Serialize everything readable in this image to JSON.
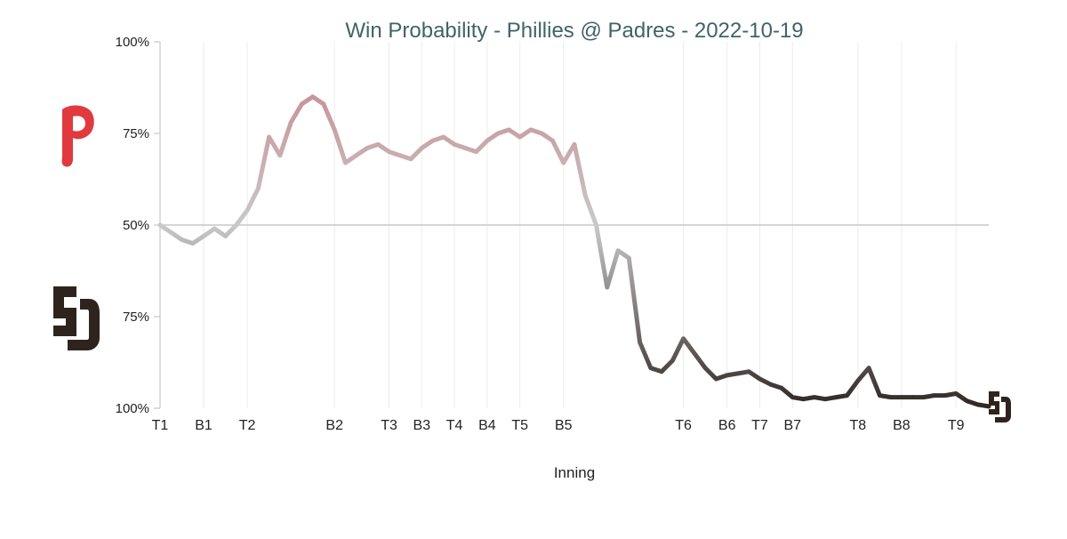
{
  "chart_data": {
    "type": "line",
    "title": "Win Probability - Phillies @ Padres - 2022-10-19",
    "xlabel": "Inning",
    "ylabel": "",
    "y_ticks": [
      "100%",
      "75%",
      "50%",
      "75%",
      "100%"
    ],
    "x_tick_labels": [
      {
        "label": "T1",
        "index": 0
      },
      {
        "label": "B1",
        "index": 4
      },
      {
        "label": "T2",
        "index": 8
      },
      {
        "label": "B2",
        "index": 16
      },
      {
        "label": "T3",
        "index": 21
      },
      {
        "label": "B3",
        "index": 24
      },
      {
        "label": "T4",
        "index": 27
      },
      {
        "label": "B4",
        "index": 30
      },
      {
        "label": "T5",
        "index": 33
      },
      {
        "label": "B5",
        "index": 37
      },
      {
        "label": "T6",
        "index": 48
      },
      {
        "label": "B6",
        "index": 52
      },
      {
        "label": "T7",
        "index": 55
      },
      {
        "label": "B7",
        "index": 58
      },
      {
        "label": "T8",
        "index": 64
      },
      {
        "label": "B8",
        "index": 68
      },
      {
        "label": "T9",
        "index": 73
      }
    ],
    "series": [
      {
        "values": [
          50,
          48,
          46,
          45,
          47,
          49,
          47,
          50,
          54,
          60,
          74,
          69,
          78,
          83,
          85,
          83,
          76,
          67,
          69,
          71,
          72,
          70,
          69,
          68,
          71,
          73,
          74,
          72,
          71,
          70,
          73,
          75,
          76,
          74,
          76,
          75,
          73,
          67,
          72,
          58,
          50,
          33,
          43,
          41,
          18,
          11,
          10,
          13,
          19,
          15,
          11,
          8,
          9,
          9.5,
          10,
          8,
          6.5,
          5.5,
          3,
          2.5,
          3,
          2.5,
          3,
          3.5,
          7.5,
          11,
          3.5,
          3,
          3,
          3,
          3,
          3.5,
          3.5,
          4,
          2,
          1,
          0.5
        ]
      }
    ],
    "ylim": [
      0,
      100
    ],
    "midline": 50,
    "grid": "vertical",
    "colors": {
      "phillies": "#c87f84",
      "neutral": "#c9c9c9",
      "padres": "#2f2622",
      "title": "#3f6468",
      "phillies_logo": "#e03a3e",
      "padres_logo": "#2f241d"
    },
    "logos": {
      "top": "phillies-logo-icon",
      "bottom": "padres-logo-icon",
      "end": "padres-logo-icon"
    }
  }
}
